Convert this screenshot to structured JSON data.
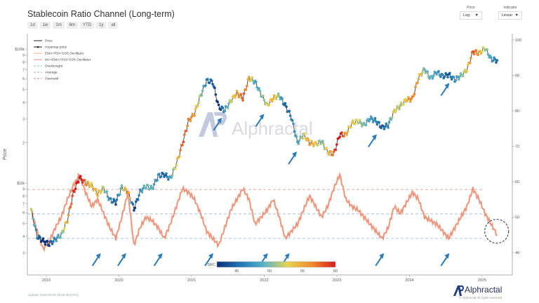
{
  "header": {
    "title": "Stablecoin Ratio Channel (Long-term)",
    "ranges": [
      "1d",
      "1w",
      "1m",
      "6m",
      "YTD",
      "1y",
      "all"
    ],
    "price_select": {
      "label": "Price",
      "value": "Log"
    },
    "indicator_select": {
      "label": "Indicator",
      "value": "Linear"
    }
  },
  "footer": {
    "update": "Update: 2025-03-30 16:09:48 (UTC)",
    "brand": "Alphractal",
    "copyright": "© Alphractal All rights reserved"
  },
  "watermark": "Alphractal",
  "chart_data": {
    "type": "line",
    "ylabel": "Price",
    "left_axis": {
      "scale": "log",
      "ticks": [
        {
          "v": 3000,
          "l": "3"
        },
        {
          "v": 4000,
          "l": "4"
        },
        {
          "v": 5000,
          "l": "5"
        },
        {
          "v": 6000,
          "l": "6"
        },
        {
          "v": 7000,
          "l": "7"
        },
        {
          "v": 8000,
          "l": "8"
        },
        {
          "v": 9000,
          "l": "9"
        },
        {
          "v": 10000,
          "l": "$10k"
        },
        {
          "v": 20000,
          "l": "2"
        },
        {
          "v": 30000,
          "l": "3"
        },
        {
          "v": 40000,
          "l": "4"
        },
        {
          "v": 50000,
          "l": "5"
        },
        {
          "v": 60000,
          "l": "6"
        },
        {
          "v": 70000,
          "l": "7"
        },
        {
          "v": 80000,
          "l": "8"
        },
        {
          "v": 90000,
          "l": "9"
        },
        {
          "v": 100000,
          "l": "$100k"
        }
      ]
    },
    "right_axis": {
      "scale": "linear",
      "ylim": [
        37,
        102
      ],
      "ticks": [
        40,
        50,
        60,
        70,
        80,
        90,
        100
      ]
    },
    "x_ticks": [
      "2019",
      "2020",
      "2021",
      "2022",
      "2023",
      "2024",
      "2025"
    ],
    "legend": {
      "placement": "top-left",
      "entries": [
        "Price",
        "Heatmap price",
        "EMA+RSI+SSR Oscillator",
        "MA+EMA+RSI+SSR Oscillator",
        "Overbought",
        "Average",
        "Oversold"
      ]
    },
    "levels": {
      "overbought": 57.8,
      "average": 50.9,
      "oversold": 44.0
    },
    "colors": {
      "oscillator": "#f4a582",
      "oscillator2": "#e88080",
      "overbought": "#e88a8a",
      "average": "#9bb0c8",
      "oversold": "#8fc6d8",
      "arrow": "#2b7bba"
    },
    "colorbar": {
      "label": "SRC",
      "range": [
        42,
        60
      ],
      "ticks": [
        45,
        50,
        55,
        60
      ],
      "colors": [
        "#0b2f7a",
        "#1f78b4",
        "#5ab4c8",
        "#e8d44d",
        "#f28a2e",
        "#d7191c"
      ]
    },
    "dates": [
      "2018-10",
      "2018-11",
      "2018-12",
      "2019-01",
      "2019-02",
      "2019-03",
      "2019-04",
      "2019-05",
      "2019-06",
      "2019-07",
      "2019-08",
      "2019-09",
      "2019-10",
      "2019-11",
      "2019-12",
      "2020-01",
      "2020-02",
      "2020-03",
      "2020-04",
      "2020-05",
      "2020-06",
      "2020-07",
      "2020-08",
      "2020-09",
      "2020-10",
      "2020-11",
      "2020-12",
      "2021-01",
      "2021-02",
      "2021-03",
      "2021-04",
      "2021-05",
      "2021-06",
      "2021-07",
      "2021-08",
      "2021-09",
      "2021-10",
      "2021-11",
      "2021-12",
      "2022-01",
      "2022-02",
      "2022-03",
      "2022-04",
      "2022-05",
      "2022-06",
      "2022-07",
      "2022-08",
      "2022-09",
      "2022-10",
      "2022-11",
      "2022-12",
      "2023-01",
      "2023-02",
      "2023-03",
      "2023-04",
      "2023-05",
      "2023-06",
      "2023-07",
      "2023-08",
      "2023-09",
      "2023-10",
      "2023-11",
      "2023-12",
      "2024-01",
      "2024-02",
      "2024-03",
      "2024-04",
      "2024-05",
      "2024-06",
      "2024-07",
      "2024-08",
      "2024-09",
      "2024-10",
      "2024-11",
      "2024-12",
      "2025-01",
      "2025-02",
      "2025-03"
    ],
    "price": [
      6400,
      4000,
      3700,
      3500,
      3800,
      4100,
      5300,
      8500,
      11000,
      10000,
      9600,
      8300,
      9200,
      7500,
      7200,
      9300,
      8600,
      6400,
      8600,
      9500,
      9100,
      11300,
      11600,
      10800,
      13800,
      19600,
      29000,
      33000,
      45000,
      58000,
      57000,
      37000,
      35000,
      41000,
      47000,
      43000,
      61000,
      57000,
      46000,
      38000,
      43000,
      45000,
      38000,
      31000,
      20000,
      23000,
      20000,
      19500,
      20500,
      17000,
      16500,
      23000,
      23000,
      28000,
      29000,
      27000,
      30500,
      29000,
      26000,
      27000,
      34500,
      37700,
      42000,
      42500,
      61000,
      71000,
      60500,
      67500,
      62700,
      64600,
      59000,
      63300,
      70000,
      96000,
      93000,
      102000,
      84000,
      82500
    ],
    "oscillator": [
      52,
      46,
      41,
      43,
      47,
      50,
      55,
      59,
      62,
      57,
      53,
      55,
      51,
      47,
      44,
      50,
      57,
      42,
      47,
      50,
      49,
      47,
      44,
      48,
      53,
      58,
      57,
      55,
      51,
      46,
      44,
      42,
      47,
      52,
      55,
      58,
      55,
      48,
      50,
      52,
      55,
      50,
      44,
      46,
      48,
      52,
      56,
      53,
      50,
      53,
      58,
      62,
      55,
      53,
      52,
      50,
      48,
      46,
      44,
      47,
      53,
      51,
      54,
      57,
      55,
      50,
      49,
      48,
      46,
      44,
      47,
      50,
      53,
      58,
      55,
      51,
      48,
      45
    ],
    "arrows": [
      {
        "x": 2019.75,
        "target": "oscillator"
      },
      {
        "x": 2020.1,
        "target": "oscillator"
      },
      {
        "x": 2020.6,
        "target": "oscillator"
      },
      {
        "x": 2021.3,
        "target": "oscillator"
      },
      {
        "x": 2022.05,
        "target": "oscillator"
      },
      {
        "x": 2022.35,
        "target": "oscillator"
      },
      {
        "x": 2023.65,
        "target": "oscillator"
      },
      {
        "x": 2024.55,
        "target": "oscillator"
      },
      {
        "x": 2021.42,
        "target": "price"
      },
      {
        "x": 2022.0,
        "target": "price"
      },
      {
        "x": 2022.45,
        "target": "price"
      },
      {
        "x": 2023.55,
        "target": "price"
      },
      {
        "x": 2024.55,
        "target": "price"
      }
    ],
    "highlight": {
      "x": 2025.2,
      "value": 46
    }
  }
}
